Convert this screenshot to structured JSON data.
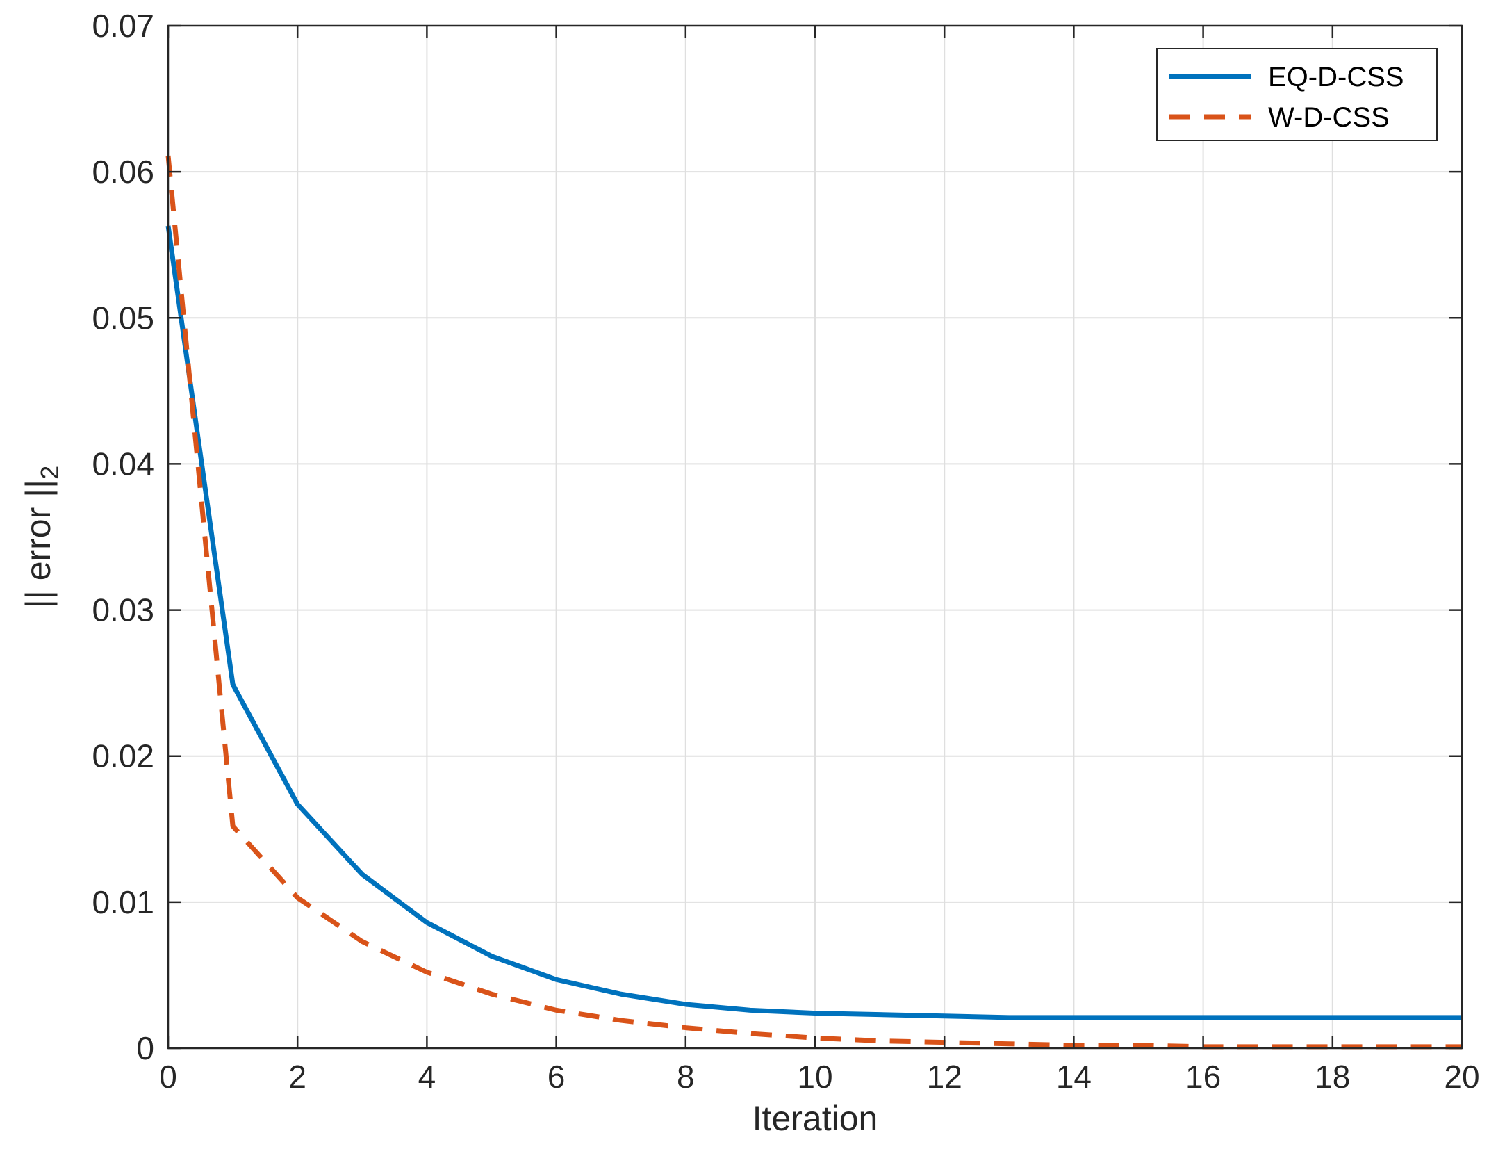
{
  "chart_data": {
    "type": "line",
    "title": "",
    "xlabel": "Iteration",
    "ylabel_main": "|| error ||",
    "ylabel_sub": "2",
    "xlim": [
      0,
      20
    ],
    "ylim": [
      0,
      0.07
    ],
    "x_ticks": [
      0,
      2,
      4,
      6,
      8,
      10,
      12,
      14,
      16,
      18,
      20
    ],
    "x_tick_labels": [
      "0",
      "2",
      "4",
      "6",
      "8",
      "10",
      "12",
      "14",
      "16",
      "18",
      "20"
    ],
    "y_ticks": [
      0,
      0.01,
      0.02,
      0.03,
      0.04,
      0.05,
      0.06,
      0.07
    ],
    "y_tick_labels": [
      "0",
      "0.01",
      "0.02",
      "0.03",
      "0.04",
      "0.05",
      "0.06",
      "0.07"
    ],
    "grid": true,
    "legend_position": "top-right",
    "x": [
      0,
      1,
      2,
      3,
      4,
      5,
      6,
      7,
      8,
      9,
      10,
      11,
      12,
      13,
      14,
      15,
      16,
      17,
      18,
      19,
      20
    ],
    "series": [
      {
        "name": "EQ-D-CSS",
        "color": "#0072BD",
        "style": "solid",
        "values": [
          0.0563,
          0.0249,
          0.0167,
          0.0119,
          0.0086,
          0.0063,
          0.0047,
          0.0037,
          0.003,
          0.0026,
          0.0024,
          0.0023,
          0.0022,
          0.0021,
          0.0021,
          0.0021,
          0.0021,
          0.0021,
          0.0021,
          0.0021,
          0.0021
        ]
      },
      {
        "name": "W-D-CSS",
        "color": "#D95319",
        "style": "dashed",
        "values": [
          0.0611,
          0.0152,
          0.0103,
          0.0073,
          0.0052,
          0.0037,
          0.0026,
          0.0019,
          0.0014,
          0.001,
          0.0007,
          0.0005,
          0.0004,
          0.0003,
          0.0002,
          0.0002,
          0.0001,
          0.0001,
          0.0001,
          0.0001,
          0.0001
        ]
      }
    ]
  }
}
